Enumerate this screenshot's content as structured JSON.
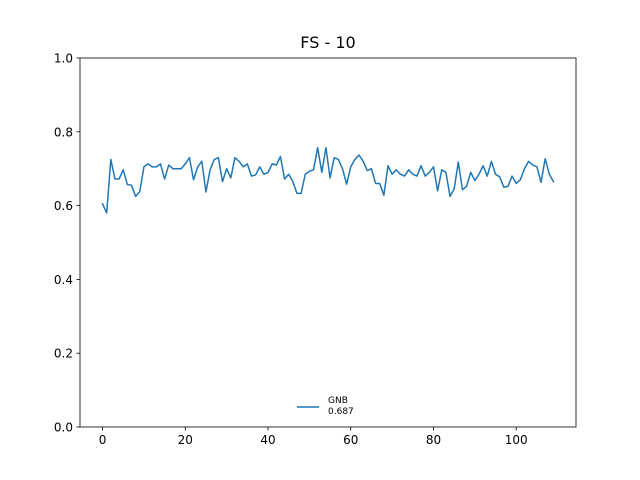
{
  "chart_data": {
    "type": "line",
    "title": "FS - 10",
    "xlabel": "",
    "ylabel": "",
    "xlim": [
      -5.45,
      114.45
    ],
    "ylim": [
      0.0,
      1.0
    ],
    "xticks": [
      0,
      20,
      40,
      60,
      80,
      100
    ],
    "xtick_labels": [
      "0",
      "20",
      "40",
      "60",
      "80",
      "100"
    ],
    "yticks": [
      0.0,
      0.2,
      0.4,
      0.6,
      0.8,
      1.0
    ],
    "ytick_labels": [
      "0.0",
      "0.2",
      "0.4",
      "0.6",
      "0.8",
      "1.0"
    ],
    "grid": false,
    "legend_position": "lower center",
    "series": [
      {
        "name": "GNB",
        "legend_value": "0.687",
        "color": "#1f77b4",
        "x": [
          0,
          1,
          2,
          3,
          4,
          5,
          6,
          7,
          8,
          9,
          10,
          11,
          12,
          13,
          14,
          15,
          16,
          17,
          18,
          19,
          20,
          21,
          22,
          23,
          24,
          25,
          26,
          27,
          28,
          29,
          30,
          31,
          32,
          33,
          34,
          35,
          36,
          37,
          38,
          39,
          40,
          41,
          42,
          43,
          44,
          45,
          46,
          47,
          48,
          49,
          50,
          51,
          52,
          53,
          54,
          55,
          56,
          57,
          58,
          59,
          60,
          61,
          62,
          63,
          64,
          65,
          66,
          67,
          68,
          69,
          70,
          71,
          72,
          73,
          74,
          75,
          76,
          77,
          78,
          79,
          80,
          81,
          82,
          83,
          84,
          85,
          86,
          87,
          88,
          89,
          90,
          91,
          92,
          93,
          94,
          95,
          96,
          97,
          98,
          99,
          100,
          101,
          102,
          103,
          104,
          105,
          106,
          107,
          108,
          109
        ],
        "y": [
          0.605,
          0.58,
          0.725,
          0.672,
          0.672,
          0.697,
          0.657,
          0.655,
          0.625,
          0.638,
          0.705,
          0.713,
          0.705,
          0.705,
          0.713,
          0.672,
          0.71,
          0.7,
          0.7,
          0.7,
          0.713,
          0.73,
          0.67,
          0.705,
          0.72,
          0.637,
          0.697,
          0.725,
          0.73,
          0.665,
          0.7,
          0.675,
          0.73,
          0.72,
          0.705,
          0.713,
          0.68,
          0.683,
          0.705,
          0.685,
          0.69,
          0.713,
          0.71,
          0.733,
          0.672,
          0.685,
          0.665,
          0.633,
          0.633,
          0.685,
          0.693,
          0.697,
          0.757,
          0.69,
          0.757,
          0.675,
          0.73,
          0.725,
          0.7,
          0.658,
          0.705,
          0.725,
          0.737,
          0.72,
          0.695,
          0.7,
          0.66,
          0.66,
          0.628,
          0.708,
          0.685,
          0.697,
          0.685,
          0.68,
          0.697,
          0.685,
          0.68,
          0.708,
          0.68,
          0.69,
          0.705,
          0.64,
          0.697,
          0.69,
          0.625,
          0.645,
          0.718,
          0.643,
          0.652,
          0.69,
          0.668,
          0.685,
          0.708,
          0.68,
          0.72,
          0.685,
          0.678,
          0.65,
          0.652,
          0.68,
          0.66,
          0.67,
          0.7,
          0.72,
          0.71,
          0.705,
          0.663,
          0.727,
          0.685,
          0.665
        ]
      }
    ]
  }
}
